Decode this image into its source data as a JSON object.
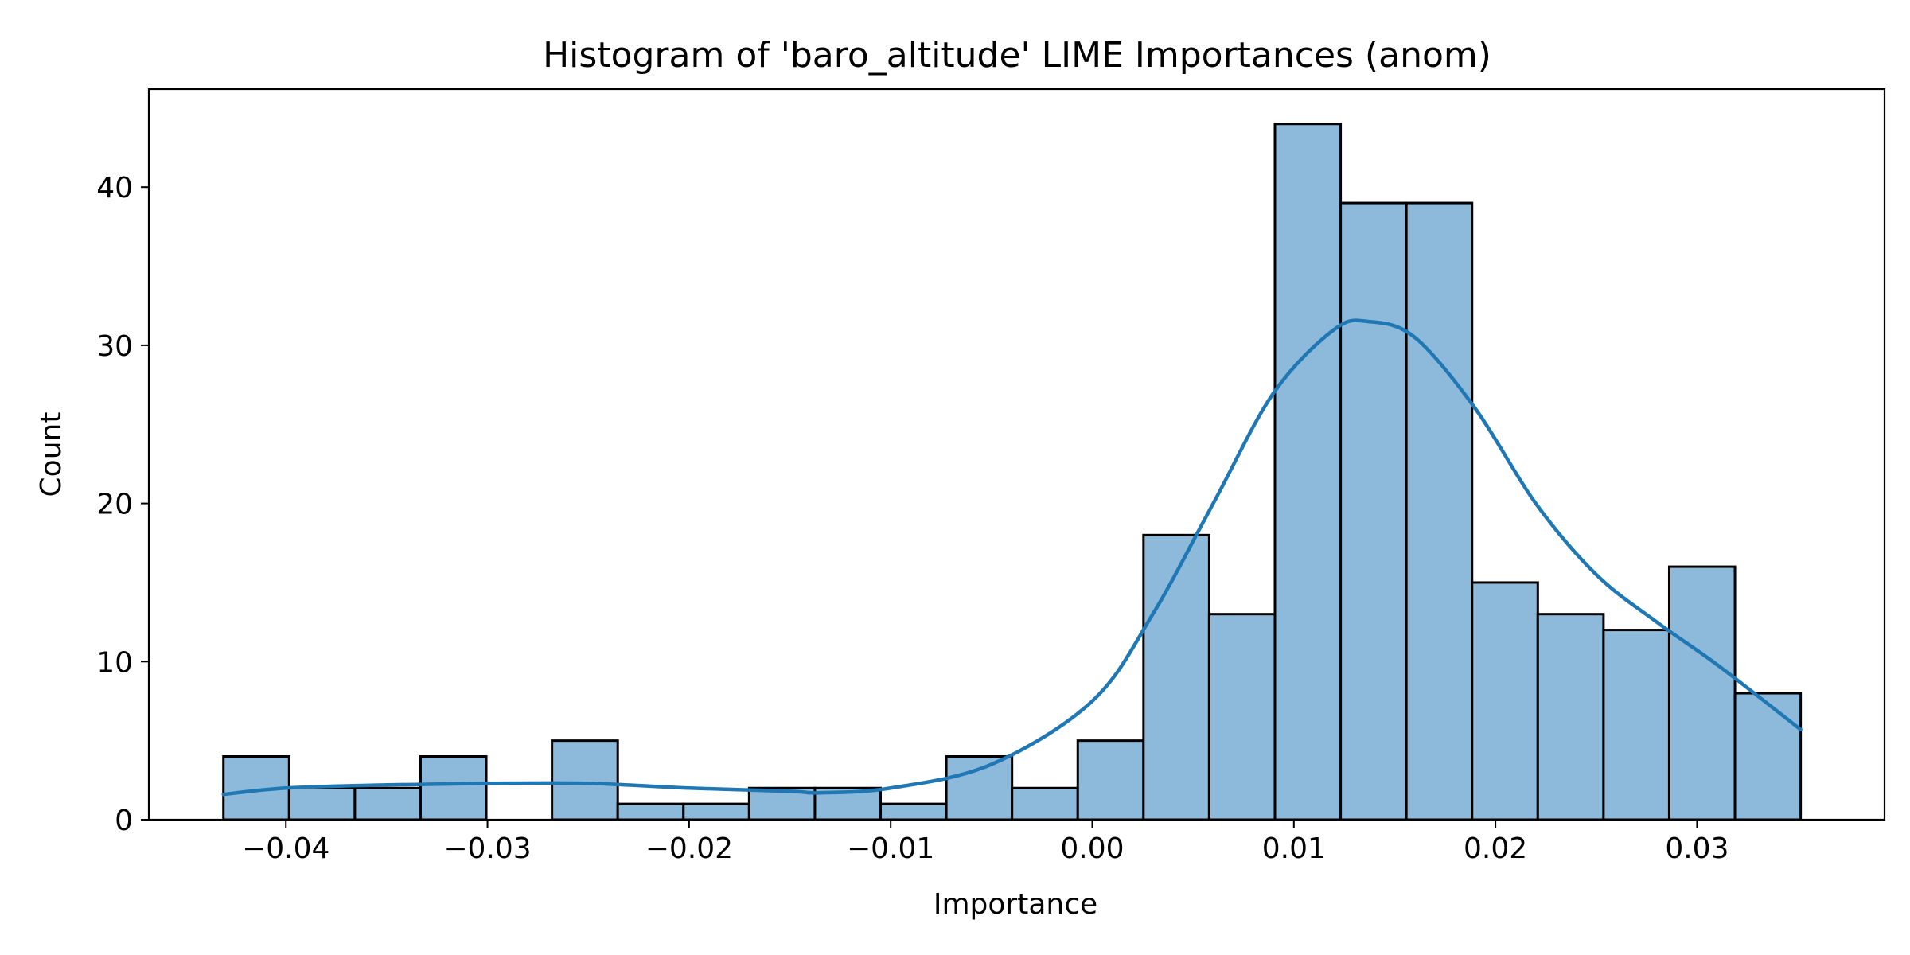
{
  "chart_data": {
    "type": "bar",
    "title": "Histogram of 'baro_altitude' LIME Importances (anom)",
    "xlabel": "Importance",
    "ylabel": "Count",
    "xlim": [
      -0.0468,
      0.0393
    ],
    "ylim": [
      0,
      46.2
    ],
    "x_ticks": [
      -0.04,
      -0.03,
      -0.02,
      -0.01,
      0.0,
      0.01,
      0.02,
      0.03
    ],
    "x_tick_labels": [
      "−0.04",
      "−0.03",
      "−0.02",
      "−0.01",
      "0.00",
      "0.01",
      "0.02",
      "0.03"
    ],
    "y_ticks": [
      0,
      10,
      20,
      30,
      40
    ],
    "y_tick_labels": [
      "0",
      "10",
      "20",
      "30",
      "40"
    ],
    "bin_edges": [
      -0.0431,
      -0.03984,
      -0.03658,
      -0.03332,
      -0.03006,
      -0.0268,
      -0.02354,
      -0.02028,
      -0.01702,
      -0.01376,
      -0.0105,
      -0.00724,
      -0.00398,
      -0.00072,
      0.00254,
      0.0058,
      0.00906,
      0.01232,
      0.01558,
      0.01884,
      0.0221,
      0.02536,
      0.02862,
      0.03188,
      0.03514
    ],
    "counts": [
      4,
      2,
      2,
      4,
      0,
      5,
      1,
      1,
      2,
      2,
      1,
      4,
      2,
      5,
      18,
      13,
      44,
      39,
      39,
      15,
      13,
      12,
      16,
      8
    ],
    "kde": {
      "x": [
        -0.0431,
        -0.04,
        -0.035,
        -0.03,
        -0.025,
        -0.02,
        -0.015,
        -0.0135,
        -0.01,
        -0.005,
        0.0,
        0.003,
        0.006,
        0.009,
        0.012,
        0.0137,
        0.016,
        0.019,
        0.022,
        0.025,
        0.028,
        0.031,
        0.03514
      ],
      "y": [
        1.6,
        2.0,
        2.2,
        2.3,
        2.3,
        2.0,
        1.8,
        1.7,
        2.0,
        3.5,
        7.5,
        13.0,
        20.0,
        27.0,
        31.0,
        31.5,
        30.5,
        26.0,
        20.0,
        15.5,
        12.5,
        9.8,
        5.7
      ]
    },
    "colors": {
      "bar_fill": "#8db9da",
      "bar_edge": "#000000",
      "kde_line": "#1f77b4"
    },
    "grid": false,
    "legend": "none"
  }
}
